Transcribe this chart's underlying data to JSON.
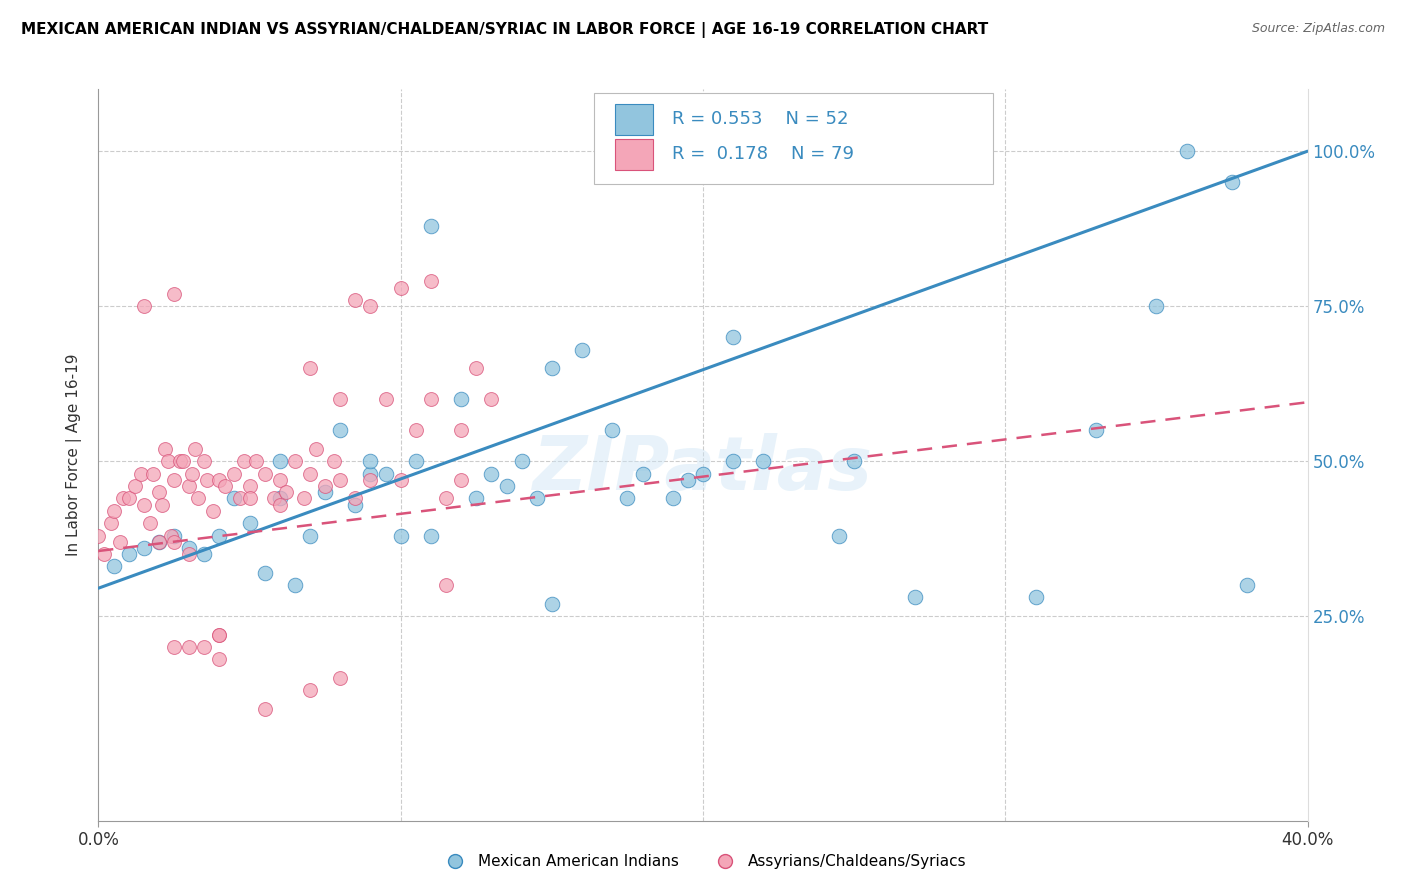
{
  "title": "MEXICAN AMERICAN INDIAN VS ASSYRIAN/CHALDEAN/SYRIAC IN LABOR FORCE | AGE 16-19 CORRELATION CHART",
  "source": "Source: ZipAtlas.com",
  "ylabel": "In Labor Force | Age 16-19",
  "ytick_labels": [
    "25.0%",
    "50.0%",
    "75.0%",
    "100.0%"
  ],
  "ytick_values": [
    0.25,
    0.5,
    0.75,
    1.0
  ],
  "xlim": [
    0.0,
    0.4
  ],
  "ylim": [
    -0.08,
    1.1
  ],
  "color_blue": "#92c5de",
  "color_pink": "#f4a6b8",
  "color_blue_dark": "#3a8bbf",
  "color_pink_dark": "#d9537a",
  "legend_label1": "Mexican American Indians",
  "legend_label2": "Assyrians/Chaldeans/Syriacs",
  "watermark": "ZIPatlas",
  "blue_trendline_x": [
    0.0,
    0.4
  ],
  "blue_trendline_y": [
    0.295,
    1.0
  ],
  "pink_trendline_x": [
    0.0,
    0.4
  ],
  "pink_trendline_y": [
    0.355,
    0.595
  ],
  "blue_x": [
    0.005,
    0.01,
    0.015,
    0.02,
    0.025,
    0.03,
    0.035,
    0.04,
    0.045,
    0.05,
    0.055,
    0.06,
    0.065,
    0.07,
    0.075,
    0.08,
    0.085,
    0.09,
    0.095,
    0.1,
    0.105,
    0.11,
    0.12,
    0.125,
    0.13,
    0.135,
    0.14,
    0.145,
    0.15,
    0.16,
    0.17,
    0.18,
    0.19,
    0.2,
    0.21,
    0.22,
    0.25,
    0.27,
    0.31,
    0.33,
    0.35,
    0.36,
    0.375,
    0.38,
    0.15,
    0.195,
    0.21,
    0.175,
    0.245,
    0.06,
    0.09,
    0.11
  ],
  "blue_y": [
    0.33,
    0.35,
    0.36,
    0.37,
    0.38,
    0.36,
    0.35,
    0.38,
    0.44,
    0.4,
    0.32,
    0.44,
    0.3,
    0.38,
    0.45,
    0.55,
    0.43,
    0.48,
    0.48,
    0.38,
    0.5,
    0.38,
    0.6,
    0.44,
    0.48,
    0.46,
    0.5,
    0.44,
    0.65,
    0.68,
    0.55,
    0.48,
    0.44,
    0.48,
    0.7,
    0.5,
    0.5,
    0.28,
    0.28,
    0.55,
    0.75,
    1.0,
    0.95,
    0.3,
    0.27,
    0.47,
    0.5,
    0.44,
    0.38,
    0.5,
    0.5,
    0.88
  ],
  "pink_x": [
    0.0,
    0.002,
    0.004,
    0.005,
    0.007,
    0.008,
    0.01,
    0.012,
    0.014,
    0.015,
    0.017,
    0.018,
    0.02,
    0.021,
    0.022,
    0.023,
    0.024,
    0.025,
    0.027,
    0.028,
    0.03,
    0.031,
    0.032,
    0.033,
    0.035,
    0.036,
    0.038,
    0.04,
    0.042,
    0.045,
    0.047,
    0.048,
    0.05,
    0.052,
    0.055,
    0.058,
    0.06,
    0.062,
    0.065,
    0.068,
    0.07,
    0.072,
    0.075,
    0.078,
    0.08,
    0.085,
    0.09,
    0.095,
    0.1,
    0.105,
    0.11,
    0.115,
    0.12,
    0.125,
    0.13,
    0.04,
    0.05,
    0.06,
    0.07,
    0.08,
    0.085,
    0.09,
    0.1,
    0.11,
    0.115,
    0.12,
    0.02,
    0.025,
    0.03,
    0.035,
    0.04,
    0.025,
    0.03,
    0.04,
    0.055,
    0.07,
    0.08,
    0.025,
    0.015
  ],
  "pink_y": [
    0.38,
    0.35,
    0.4,
    0.42,
    0.37,
    0.44,
    0.44,
    0.46,
    0.48,
    0.43,
    0.4,
    0.48,
    0.45,
    0.43,
    0.52,
    0.5,
    0.38,
    0.47,
    0.5,
    0.5,
    0.46,
    0.48,
    0.52,
    0.44,
    0.5,
    0.47,
    0.42,
    0.47,
    0.46,
    0.48,
    0.44,
    0.5,
    0.46,
    0.5,
    0.48,
    0.44,
    0.47,
    0.45,
    0.5,
    0.44,
    0.48,
    0.52,
    0.46,
    0.5,
    0.47,
    0.44,
    0.47,
    0.6,
    0.47,
    0.55,
    0.6,
    0.44,
    0.47,
    0.65,
    0.6,
    0.22,
    0.44,
    0.43,
    0.65,
    0.6,
    0.76,
    0.75,
    0.78,
    0.79,
    0.3,
    0.55,
    0.37,
    0.37,
    0.35,
    0.2,
    0.18,
    0.2,
    0.2,
    0.22,
    0.1,
    0.13,
    0.15,
    0.77,
    0.75
  ]
}
